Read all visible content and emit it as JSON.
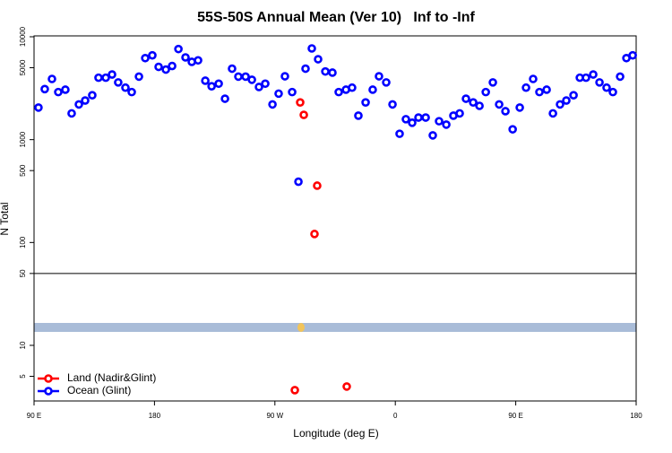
{
  "chart_data": {
    "type": "scatter",
    "title": "55S-50S Annual Mean (Ver 10)   Inf to -Inf",
    "xlabel": "Longitude (deg E)",
    "ylabel": "N Total",
    "xlim": [
      90,
      540
    ],
    "xticks": [
      {
        "value": 90,
        "label": "90 E"
      },
      180,
      {
        "value": 270,
        "label": "90 W"
      },
      {
        "value": 360,
        "label": "0"
      },
      {
        "value": 450,
        "label": "90 E"
      },
      {
        "value": 540,
        "label": "180"
      }
    ],
    "ylim": [
      2.88,
      10200
    ],
    "yticks": [
      5,
      10,
      50,
      100,
      500,
      1000,
      5000,
      10000
    ],
    "log_y": true,
    "hline": 50,
    "legend": "lower left",
    "series": [
      {
        "name": "Land (Nadir&Glint)",
        "color": "#ff0000",
        "x": [
          288.9,
          291.6,
          301.6,
          299.6,
          284.9,
          323.7
        ],
        "values": [
          2300,
          1740,
          357,
          121,
          3.67,
          3.98
        ]
      },
      {
        "name": "Ocean (Glint)",
        "color": "#0000ff",
        "x": [
          93.3,
          98.0,
          103.4,
          108.1,
          113.4,
          118.1,
          123.5,
          128.2,
          133.5,
          138.2,
          143.6,
          148.3,
          152.9,
          158.3,
          163.0,
          168.4,
          173.1,
          178.4,
          183.1,
          188.5,
          193.2,
          197.9,
          203.2,
          207.9,
          212.6,
          218.0,
          222.7,
          228.0,
          232.7,
          238.0,
          242.7,
          248.1,
          252.8,
          258.1,
          262.8,
          268.2,
          272.8,
          277.5,
          282.9,
          287.6,
          292.9,
          297.6,
          302.3,
          307.7,
          313.0,
          317.7,
          323.1,
          327.7,
          332.4,
          337.8,
          343.1,
          347.8,
          353.2,
          357.9,
          363.2,
          367.9,
          372.6,
          377.3,
          382.7,
          388.0,
          392.7,
          398.1,
          403.4,
          408.1,
          412.8,
          418.2,
          422.9,
          427.6,
          432.9,
          437.6,
          442.3,
          447.7,
          453.0,
          457.7,
          463.0,
          467.7,
          473.1,
          477.8,
          483.1,
          487.8,
          493.2,
          497.9,
          502.5,
          507.9,
          512.6,
          517.9,
          522.6,
          528.0,
          532.7,
          537.4
        ],
        "values": [
          2050,
          3100,
          3890,
          2900,
          3060,
          1800,
          2200,
          2400,
          2700,
          4000,
          4000,
          4300,
          3600,
          3200,
          2900,
          4100,
          6200,
          6600,
          5100,
          4800,
          5200,
          7600,
          6300,
          5700,
          5900,
          3740,
          3300,
          3500,
          2500,
          4900,
          4100,
          4100,
          3820,
          3250,
          3500,
          2200,
          2800,
          4130,
          2900,
          390,
          4900,
          7700,
          6050,
          4600,
          4480,
          2900,
          3060,
          3200,
          1710,
          2300,
          3060,
          4130,
          3600,
          2200,
          1140,
          1580,
          1460,
          1640,
          1640,
          1100,
          1510,
          1400,
          1710,
          1800,
          2500,
          2300,
          2130,
          2900,
          3600,
          2200,
          1890,
          1260,
          2050,
          3200,
          3890,
          2900,
          3060,
          1800,
          2200,
          2400,
          2700,
          4000,
          4000,
          4300,
          3600,
          3200,
          2900,
          4100,
          6200,
          6600
        ]
      }
    ]
  }
}
